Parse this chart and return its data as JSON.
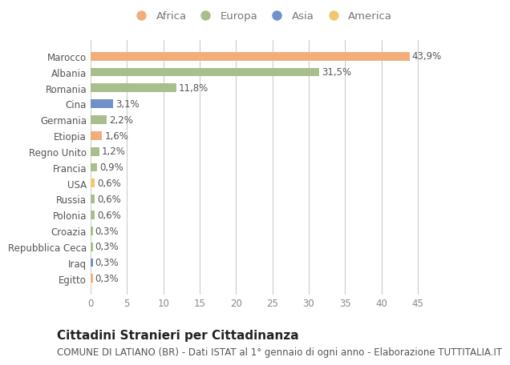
{
  "categories": [
    "Marocco",
    "Albania",
    "Romania",
    "Cina",
    "Germania",
    "Etiopia",
    "Regno Unito",
    "Francia",
    "USA",
    "Russia",
    "Polonia",
    "Croazia",
    "Repubblica Ceca",
    "Iraq",
    "Egitto"
  ],
  "values": [
    43.9,
    31.5,
    11.8,
    3.1,
    2.2,
    1.6,
    1.2,
    0.9,
    0.6,
    0.6,
    0.6,
    0.3,
    0.3,
    0.3,
    0.3
  ],
  "labels": [
    "43,9%",
    "31,5%",
    "11,8%",
    "3,1%",
    "2,2%",
    "1,6%",
    "1,2%",
    "0,9%",
    "0,6%",
    "0,6%",
    "0,6%",
    "0,3%",
    "0,3%",
    "0,3%",
    "0,3%"
  ],
  "continents": [
    "Africa",
    "Europa",
    "Europa",
    "Asia",
    "Europa",
    "Africa",
    "Europa",
    "Europa",
    "America",
    "Europa",
    "Europa",
    "Europa",
    "Europa",
    "Asia",
    "Africa"
  ],
  "continent_colors": {
    "Africa": "#F2AE7A",
    "Europa": "#A8BE8C",
    "Asia": "#7090C8",
    "America": "#F0C870"
  },
  "legend_order": [
    "Africa",
    "Europa",
    "Asia",
    "America"
  ],
  "title": "Cittadini Stranieri per Cittadinanza",
  "subtitle": "COMUNE DI LATIANO (BR) - Dati ISTAT al 1° gennaio di ogni anno - Elaborazione TUTTITALIA.IT",
  "xlim": [
    0,
    47
  ],
  "xticks": [
    0,
    5,
    10,
    15,
    20,
    25,
    30,
    35,
    40,
    45
  ],
  "background_color": "#FFFFFF",
  "grid_color": "#CCCCCC",
  "bar_height": 0.55,
  "title_fontsize": 11,
  "subtitle_fontsize": 8.5,
  "tick_fontsize": 8.5,
  "label_fontsize": 8.5
}
